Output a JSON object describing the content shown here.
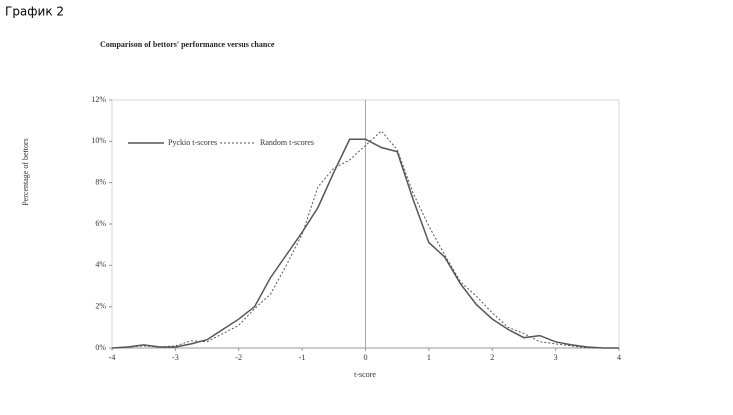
{
  "header": "График 2",
  "chart_data": {
    "type": "line",
    "title": "Comparison of bettors' performance versus chance",
    "x_label": "t-score",
    "y_label": "Percentage of bettors",
    "x": [
      -4,
      -3.75,
      -3.5,
      -3.25,
      -3,
      -2.75,
      -2.5,
      -2.25,
      -2,
      -1.75,
      -1.5,
      -1.25,
      -1,
      -0.75,
      -0.5,
      -0.25,
      0,
      0.25,
      0.5,
      0.75,
      1,
      1.25,
      1.5,
      1.75,
      2,
      2.25,
      2.5,
      2.75,
      3,
      3.25,
      3.5,
      3.75,
      4
    ],
    "series": [
      {
        "name": "Pyckio t-scores",
        "color": "#555555",
        "dash": false,
        "values": [
          0,
          0.05,
          0.15,
          0.05,
          0.05,
          0.2,
          0.4,
          0.9,
          1.4,
          2.0,
          3.4,
          4.5,
          5.6,
          6.8,
          8.5,
          10.1,
          10.1,
          9.7,
          9.5,
          7.2,
          5.1,
          4.4,
          3.1,
          2.1,
          1.4,
          0.9,
          0.5,
          0.6,
          0.3,
          0.15,
          0.05,
          0,
          0
        ]
      },
      {
        "name": "Random t-scores",
        "color": "#555555",
        "dash": true,
        "values": [
          0,
          0.05,
          0.1,
          0.05,
          0.1,
          0.35,
          0.3,
          0.7,
          1.1,
          1.9,
          2.6,
          4.0,
          5.5,
          7.8,
          8.7,
          9.1,
          9.8,
          10.5,
          9.6,
          7.5,
          5.9,
          4.5,
          3.2,
          2.5,
          1.7,
          1.0,
          0.7,
          0.3,
          0.2,
          0.1,
          0,
          0,
          0
        ]
      }
    ],
    "xlim": [
      -4,
      4
    ],
    "xticks": [
      -4,
      -3,
      -2,
      -1,
      0,
      1,
      2,
      3,
      4
    ],
    "ylim": [
      0,
      12
    ],
    "yticks": [
      {
        "value": 0,
        "label": "0%"
      },
      {
        "value": 2,
        "label": "2%"
      },
      {
        "value": 4,
        "label": "4%"
      },
      {
        "value": 6,
        "label": "6%"
      },
      {
        "value": 8,
        "label": "8%"
      },
      {
        "value": 10,
        "label": "10%"
      },
      {
        "value": 12,
        "label": "12%"
      }
    ],
    "zero_line": true,
    "legend": "top-left"
  }
}
